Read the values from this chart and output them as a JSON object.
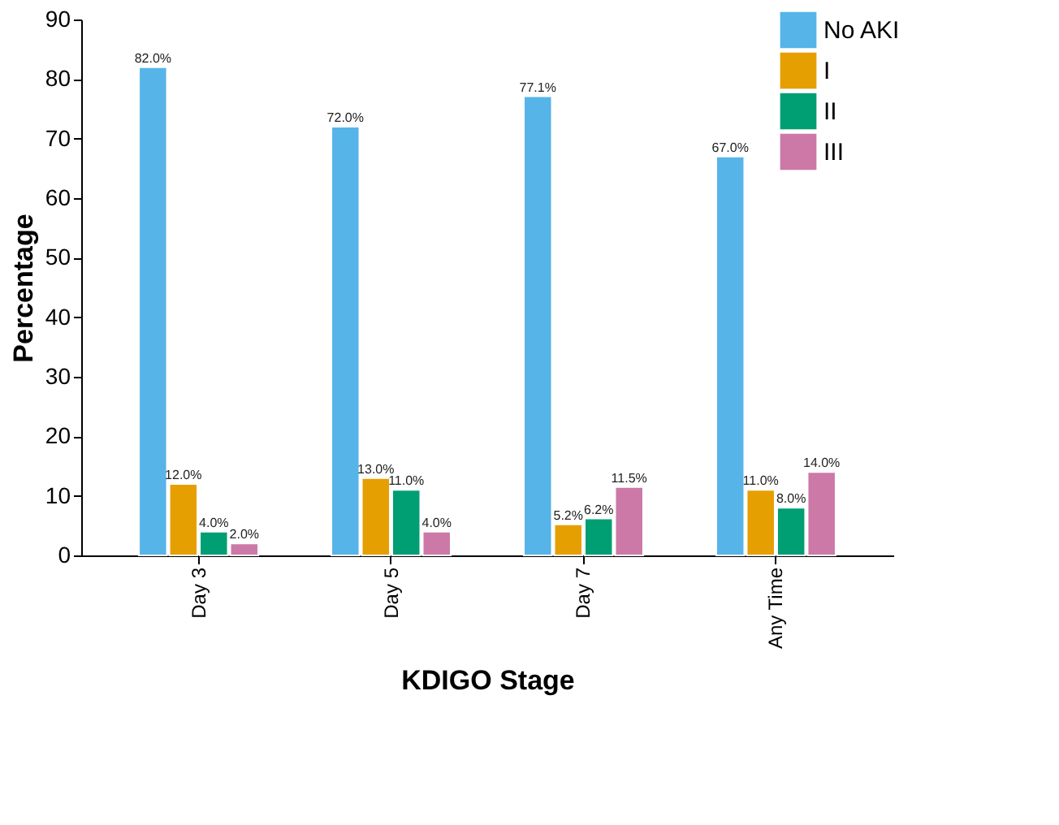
{
  "chart_data": {
    "type": "bar",
    "xlabel": "KDIGO Stage",
    "ylabel": "Percentage",
    "categories": [
      "Day 3",
      "Day 5",
      "Day 7",
      "Any Time"
    ],
    "series": [
      {
        "name": "No AKI",
        "color": "#56b4e9",
        "values": [
          82.0,
          72.0,
          77.1,
          67.0
        ],
        "value_labels": [
          "82.0%",
          "72.0%",
          "77.1%",
          "67.0%"
        ]
      },
      {
        "name": "I",
        "color": "#e69f00",
        "values": [
          12.0,
          13.0,
          5.2,
          11.0
        ],
        "value_labels": [
          "12.0%",
          "13.0%",
          "5.2%",
          "11.0%"
        ]
      },
      {
        "name": "II",
        "color": "#009e73",
        "values": [
          4.0,
          11.0,
          6.2,
          8.0
        ],
        "value_labels": [
          "4.0%",
          "11.0%",
          "6.2%",
          "8.0%"
        ]
      },
      {
        "name": "III",
        "color": "#cc79a7",
        "values": [
          2.0,
          4.0,
          11.5,
          14.0
        ],
        "value_labels": [
          "2.0%",
          "4.0%",
          "11.5%",
          "14.0%"
        ]
      }
    ],
    "ylim": [
      0,
      90
    ],
    "yticks": [
      0,
      10,
      20,
      30,
      40,
      50,
      60,
      70,
      80,
      90
    ],
    "grid": false,
    "legend": "top right"
  }
}
